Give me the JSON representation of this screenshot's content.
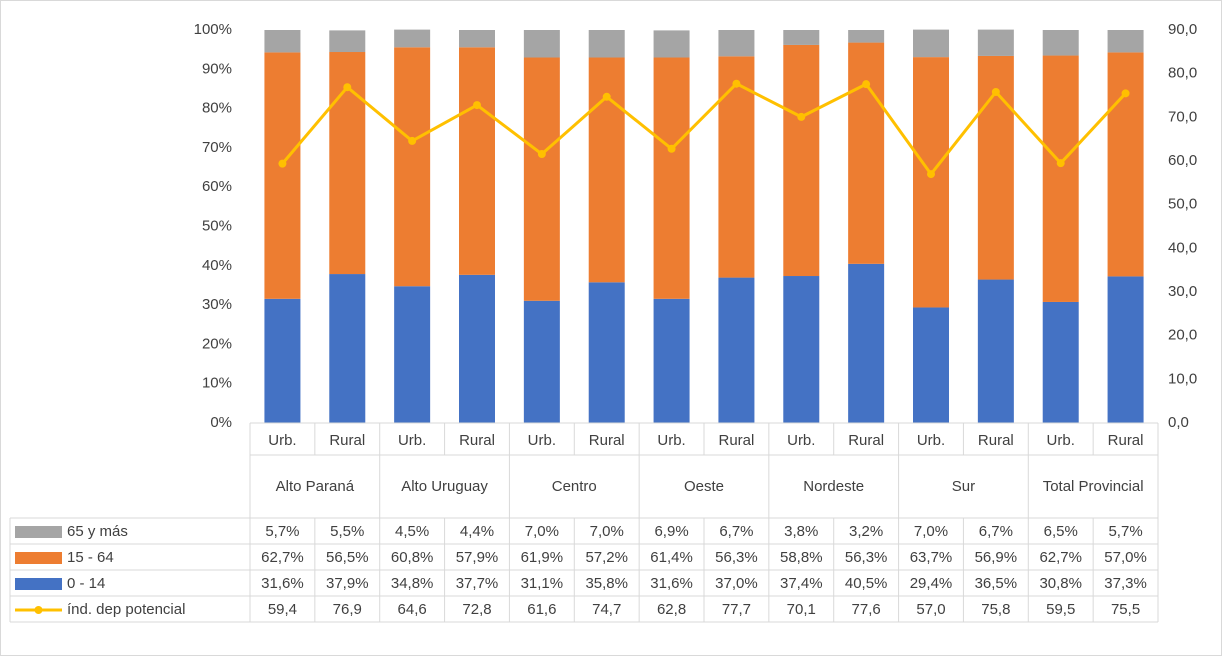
{
  "chart_data": {
    "type": "bar",
    "stacked": true,
    "categories": [
      "Urb.",
      "Rural",
      "Urb.",
      "Rural",
      "Urb.",
      "Rural",
      "Urb.",
      "Rural",
      "Urb.",
      "Rural",
      "Urb.",
      "Rural",
      "Urb.",
      "Rural"
    ],
    "groups": [
      "Alto Paraná",
      "Alto Uruguay",
      "Centro",
      "Oeste",
      "Nordeste",
      "Sur",
      "Total Provincial"
    ],
    "series": [
      {
        "name": "65 y más",
        "type": "bar",
        "color": "#a5a5a5",
        "values": [
          5.7,
          5.5,
          4.5,
          4.4,
          7.0,
          7.0,
          6.9,
          6.7,
          3.8,
          3.2,
          7.0,
          6.7,
          6.5,
          5.7
        ],
        "value_labels": [
          "5,7%",
          "5,5%",
          "4,5%",
          "4,4%",
          "7,0%",
          "7,0%",
          "6,9%",
          "6,7%",
          "3,8%",
          "3,2%",
          "7,0%",
          "6,7%",
          "6,5%",
          "5,7%"
        ]
      },
      {
        "name": "15 - 64",
        "type": "bar",
        "color": "#ed7d31",
        "values": [
          62.7,
          56.5,
          60.8,
          57.9,
          61.9,
          57.2,
          61.4,
          56.3,
          58.8,
          56.3,
          63.7,
          56.9,
          62.7,
          57.0
        ],
        "value_labels": [
          "62,7%",
          "56,5%",
          "60,8%",
          "57,9%",
          "61,9%",
          "57,2%",
          "61,4%",
          "56,3%",
          "58,8%",
          "56,3%",
          "63,7%",
          "56,9%",
          "62,7%",
          "57,0%"
        ]
      },
      {
        "name": "0 - 14",
        "type": "bar",
        "color": "#4472c4",
        "values": [
          31.6,
          37.9,
          34.8,
          37.7,
          31.1,
          35.8,
          31.6,
          37.0,
          37.4,
          40.5,
          29.4,
          36.5,
          30.8,
          37.3
        ],
        "value_labels": [
          "31,6%",
          "37,9%",
          "34,8%",
          "37,7%",
          "31,1%",
          "35,8%",
          "31,6%",
          "37,0%",
          "37,4%",
          "40,5%",
          "29,4%",
          "36,5%",
          "30,8%",
          "37,3%"
        ]
      },
      {
        "name": "índ. dep potencial",
        "type": "line",
        "axis": "y2",
        "color": "#ffc000",
        "values": [
          59.4,
          76.9,
          64.6,
          72.8,
          61.6,
          74.7,
          62.8,
          77.7,
          70.1,
          77.6,
          57.0,
          75.8,
          59.5,
          75.5
        ],
        "value_labels": [
          "59,4",
          "76,9",
          "64,6",
          "72,8",
          "61,6",
          "74,7",
          "62,8",
          "77,7",
          "70,1",
          "77,6",
          "57,0",
          "75,8",
          "59,5",
          "75,5"
        ]
      }
    ],
    "ylim": [
      0,
      100
    ],
    "yticks": [
      {
        "value": 0,
        "label": "0%"
      },
      {
        "value": 10,
        "label": "10%"
      },
      {
        "value": 20,
        "label": "20%"
      },
      {
        "value": 30,
        "label": "30%"
      },
      {
        "value": 40,
        "label": "40%"
      },
      {
        "value": 50,
        "label": "50%"
      },
      {
        "value": 60,
        "label": "60%"
      },
      {
        "value": 70,
        "label": "70%"
      },
      {
        "value": 80,
        "label": "80%"
      },
      {
        "value": 90,
        "label": "90%"
      },
      {
        "value": 100,
        "label": "100%"
      }
    ],
    "y2lim": [
      0,
      90
    ],
    "y2ticks": [
      {
        "value": 0,
        "label": "0,0"
      },
      {
        "value": 10,
        "label": "10,0"
      },
      {
        "value": 20,
        "label": "20,0"
      },
      {
        "value": 30,
        "label": "30,0"
      },
      {
        "value": 40,
        "label": "40,0"
      },
      {
        "value": 50,
        "label": "50,0"
      },
      {
        "value": 60,
        "label": "60,0"
      },
      {
        "value": 70,
        "label": "70,0"
      },
      {
        "value": 80,
        "label": "80,0"
      },
      {
        "value": 90,
        "label": "90,0"
      }
    ]
  }
}
